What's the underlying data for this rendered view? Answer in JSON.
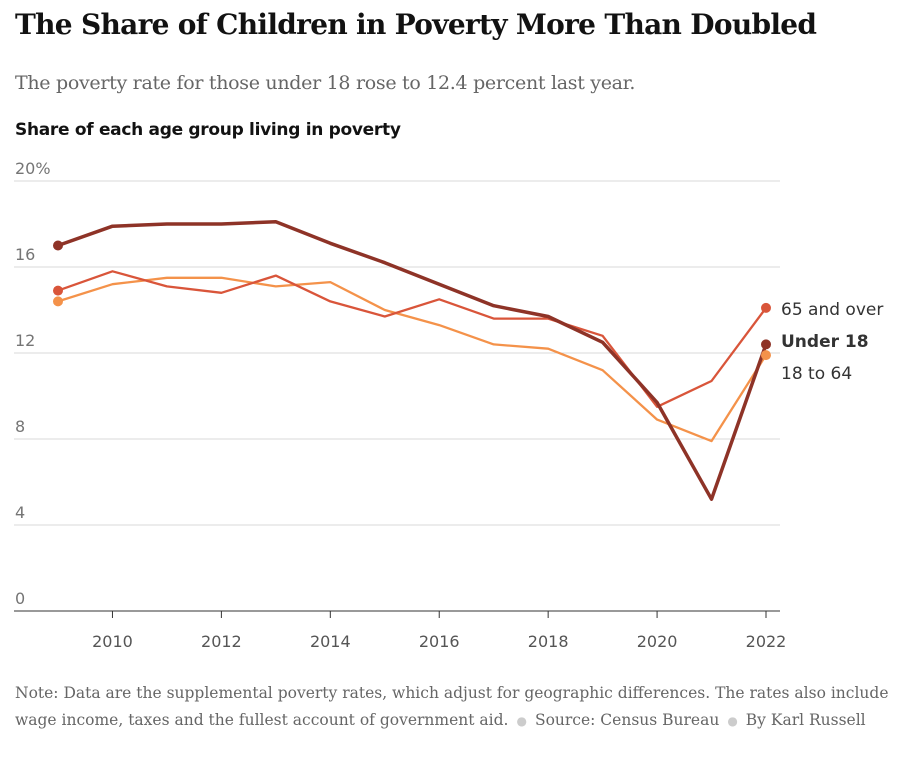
{
  "header": {
    "title": "The Share of Children in Poverty More Than Doubled",
    "subtitle": "The poverty rate for those under 18 rose to 12.4 percent last year."
  },
  "footer": {
    "note": "Note: Data are the supplemental poverty rates, which adjust for geographic differences. The rates also include wage income, taxes and the fullest account of government aid.",
    "source": "Source: Census Bureau",
    "byline": "By Karl Russell"
  },
  "chart_data": {
    "type": "line",
    "title": "Share of each age group living in poverty",
    "x": [
      2009,
      2010,
      2011,
      2012,
      2013,
      2014,
      2015,
      2016,
      2017,
      2018,
      2019,
      2020,
      2021,
      2022
    ],
    "xticks": [
      2010,
      2012,
      2014,
      2016,
      2018,
      2020,
      2022
    ],
    "xlim": [
      2009,
      2022
    ],
    "ylim": [
      0,
      20
    ],
    "yticks": [
      0,
      4,
      8,
      12,
      16,
      20
    ],
    "ytick_labels": [
      "0",
      "4",
      "8",
      "12",
      "16",
      "20%"
    ],
    "grid": "horizontal",
    "legend": "direct labels at line ends",
    "series": [
      {
        "name": "18 to 64",
        "color": "#f4924a",
        "bold": false,
        "values": [
          14.4,
          15.2,
          15.5,
          15.5,
          15.1,
          15.3,
          14.0,
          13.3,
          12.4,
          12.2,
          11.2,
          8.9,
          7.9,
          11.9
        ]
      },
      {
        "name": "65 and over",
        "color": "#d9553a",
        "bold": false,
        "values": [
          14.9,
          15.8,
          15.1,
          14.8,
          15.6,
          14.4,
          13.7,
          14.5,
          13.6,
          13.6,
          12.8,
          9.5,
          10.7,
          14.1
        ]
      },
      {
        "name": "Under 18",
        "color": "#8e3327",
        "bold": true,
        "values": [
          17.0,
          17.9,
          18.0,
          18.0,
          18.1,
          17.1,
          16.2,
          15.2,
          14.2,
          13.7,
          12.5,
          9.7,
          5.2,
          12.4
        ]
      }
    ]
  }
}
